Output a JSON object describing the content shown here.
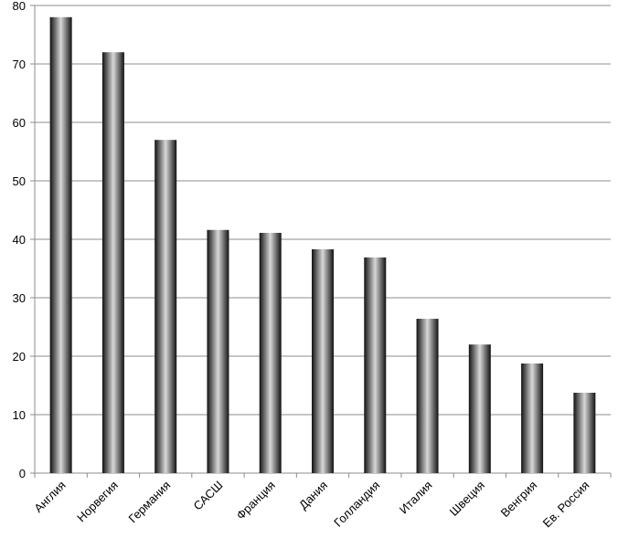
{
  "chart_data": {
    "type": "bar",
    "categories": [
      "Англия",
      "Норвегия",
      "Германия",
      "САСШ",
      "Франция",
      "Дания",
      "Голландия",
      "Италия",
      "Швеция",
      "Венгрия",
      "Ев. Россия"
    ],
    "values": [
      78,
      72,
      57,
      41.6,
      41.1,
      38.3,
      36.9,
      26.4,
      22,
      18.75,
      13.75
    ],
    "color": "#111111",
    "ylim": [
      0,
      80
    ],
    "yticks": [
      0,
      10,
      20,
      30,
      40,
      50,
      60,
      70,
      80
    ],
    "grid": true
  }
}
